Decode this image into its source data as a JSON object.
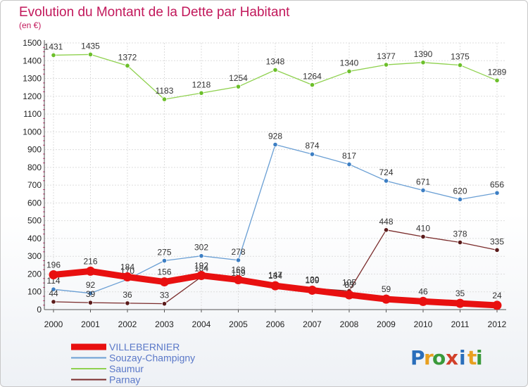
{
  "chart_data": {
    "type": "line",
    "title": "Evolution du Montant de la Dette par Habitant",
    "subtitle": "(en €)",
    "xlabel": "",
    "ylabel": "",
    "x": [
      "2000",
      "2001",
      "2002",
      "2003",
      "2004",
      "2005",
      "2006",
      "2007",
      "2008",
      "2009",
      "2010",
      "2011",
      "2012"
    ],
    "ylim": [
      0,
      1500
    ],
    "yticks": [
      "0",
      "100",
      "200",
      "300",
      "400",
      "500",
      "600",
      "700",
      "800",
      "900",
      "1000",
      "1100",
      "1200",
      "1300",
      "1400",
      "1500"
    ],
    "grid": true,
    "legend_position": "bottom-left",
    "series": [
      {
        "name": "Saumur",
        "color": "#8fd14f",
        "point_color": "#6cbf2a",
        "values": [
          1431,
          1435,
          1372,
          1183,
          1218,
          1254,
          1348,
          1264,
          1340,
          1377,
          1390,
          1375,
          1289
        ],
        "labels": [
          "1431",
          "1435",
          "1372",
          "1183",
          "1218",
          "1254",
          "1348",
          "1264",
          "1340",
          "1377",
          "1390",
          "1375",
          "1289"
        ]
      },
      {
        "name": "Souzay-Champigny",
        "color": "#6a9fd4",
        "point_color": "#3d7fc4",
        "values": [
          114,
          92,
          170,
          275,
          302,
          278,
          928,
          874,
          817,
          724,
          671,
          620,
          656
        ],
        "labels": [
          "114",
          "92",
          "170",
          "275",
          "302",
          "278",
          "928",
          "874",
          "817",
          "724",
          "671",
          "620",
          "656"
        ]
      },
      {
        "name": "Parnay",
        "color": "#7a2b2b",
        "point_color": "#5a1a1a",
        "values": [
          44,
          39,
          36,
          33,
          184,
          159,
          147,
          120,
          105,
          448,
          410,
          378,
          335
        ],
        "labels": [
          "44",
          "39",
          "36",
          "33",
          "184",
          "159",
          "147",
          "120",
          "105",
          "448",
          "410",
          "378",
          "335"
        ]
      },
      {
        "name": "VILLEBERNIER",
        "color": "#e81010",
        "point_color": "#e81010",
        "values": [
          196,
          216,
          184,
          156,
          192,
          168,
          134,
          109,
          83,
          59,
          46,
          35,
          24
        ],
        "labels": [
          "196",
          "216",
          "184",
          "156",
          "192",
          "168",
          "134",
          "109",
          "83",
          "59",
          "46",
          "35",
          "24"
        ]
      }
    ],
    "legend_order": [
      "VILLEBERNIER",
      "Souzay-Champigny",
      "Saumur",
      "Parnay"
    ]
  },
  "logo": {
    "letters": [
      "P",
      "r",
      "o",
      "x",
      "i",
      "t",
      "i"
    ]
  }
}
